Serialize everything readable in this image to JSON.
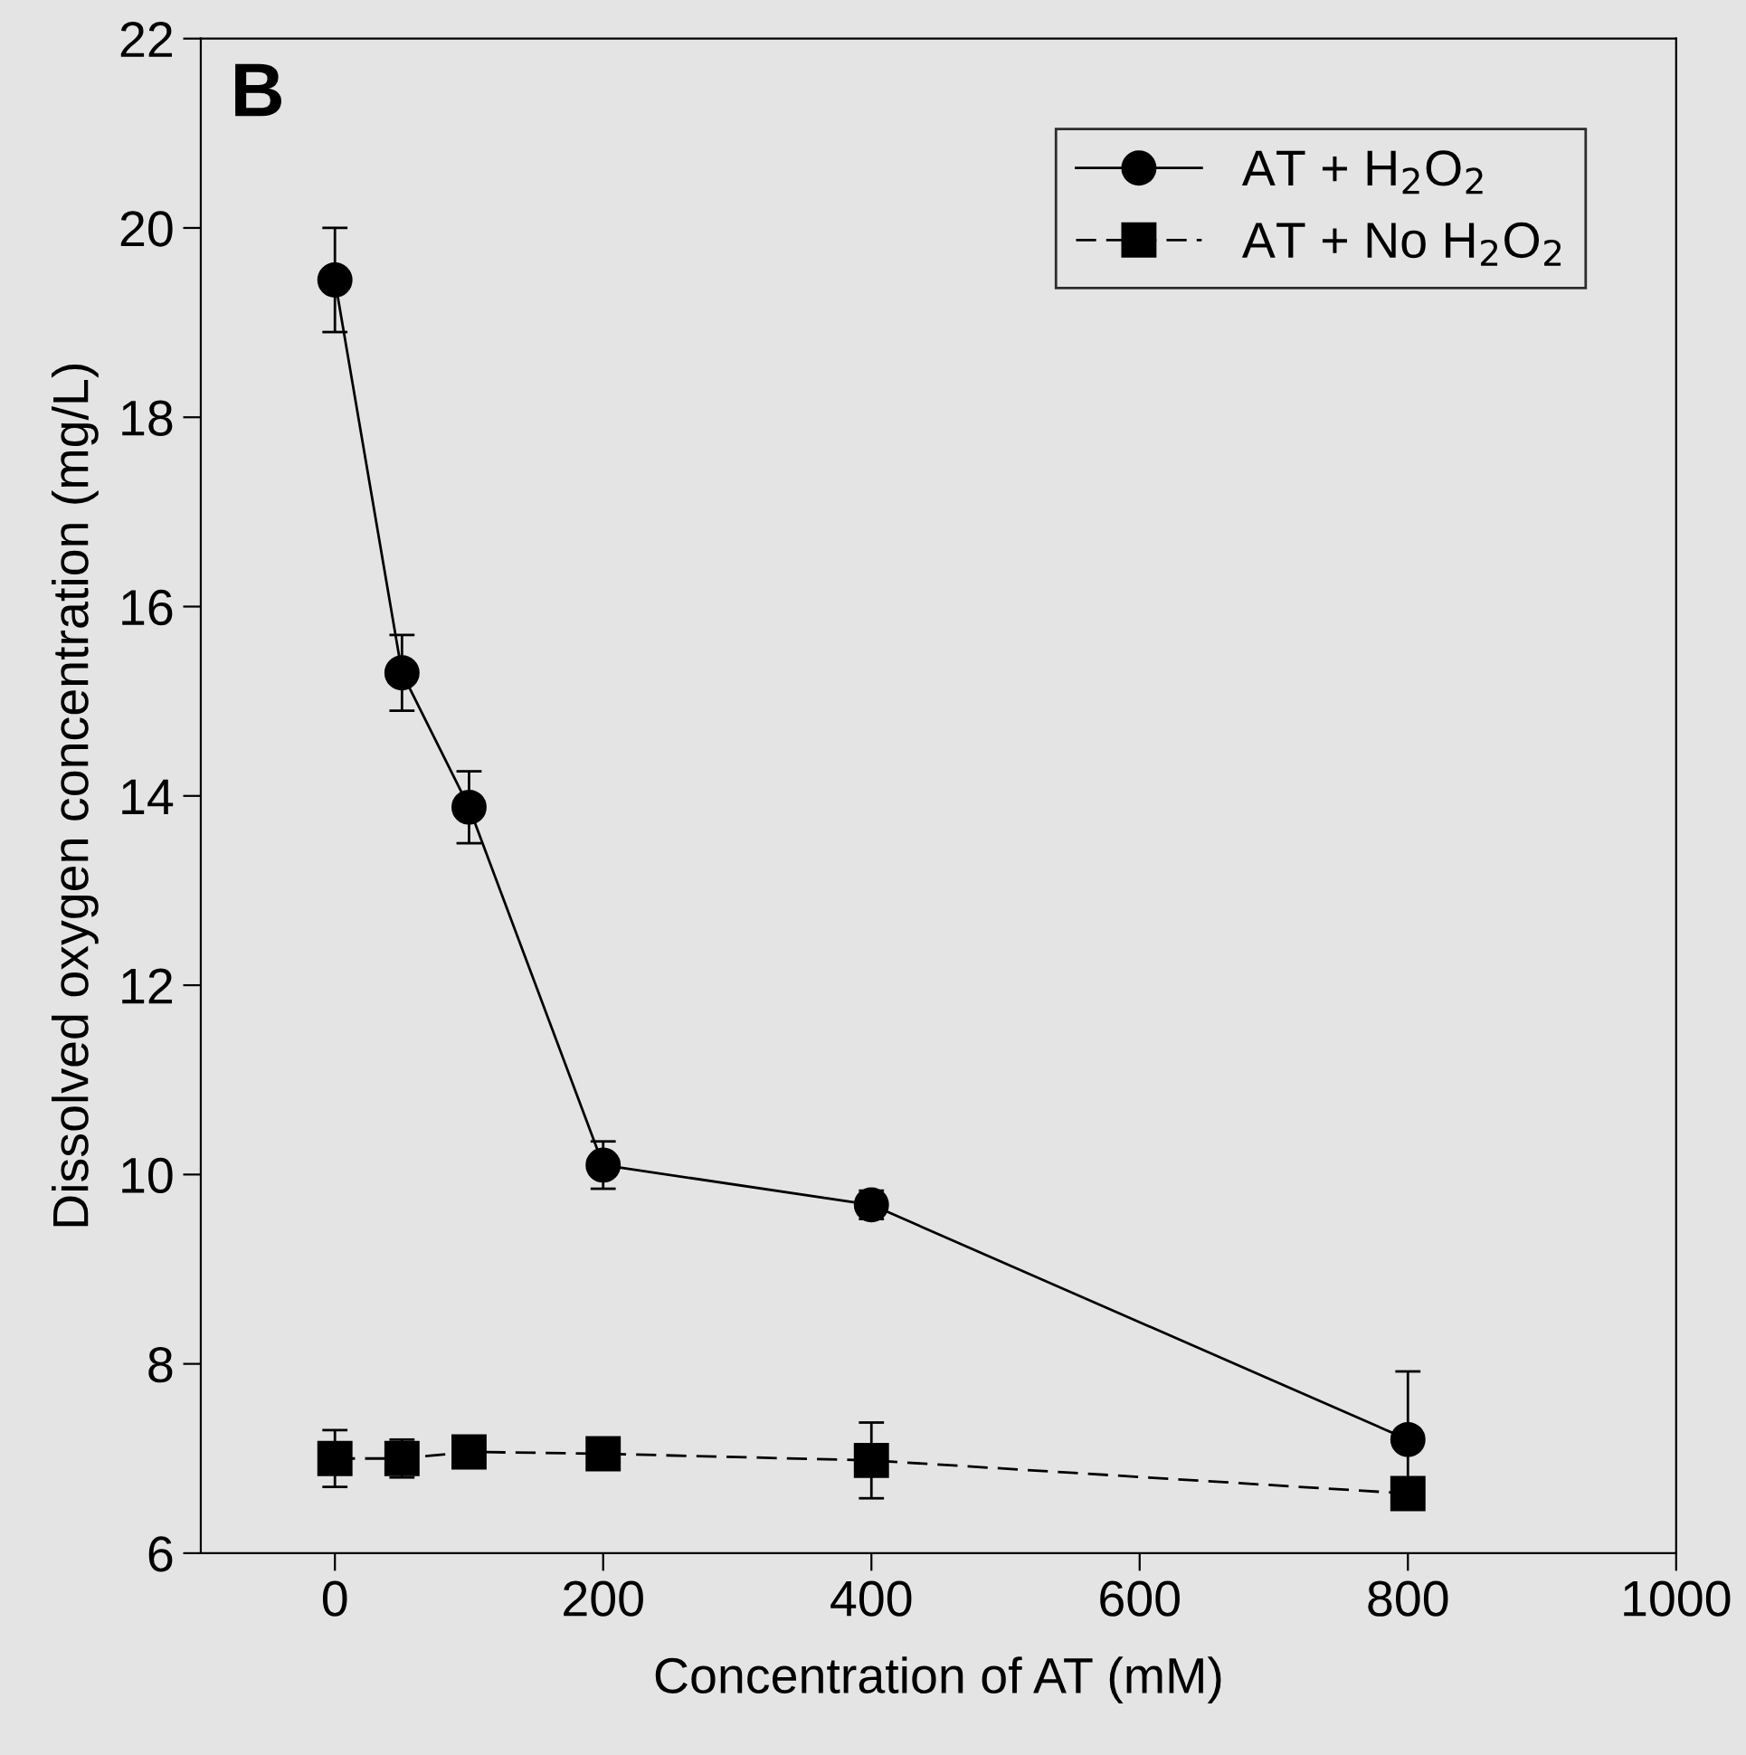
{
  "chart_data": {
    "type": "line",
    "xlabel": "Concentration of AT (mM)",
    "ylabel": "Dissolved oxygen concentration (mg/L)",
    "annotations": [
      "B"
    ],
    "x": [
      0,
      50,
      100,
      200,
      400,
      800
    ],
    "series": [
      {
        "name": "AT + H$_{2}$O$_{2}$",
        "color": "#000000",
        "marker": "circle",
        "line_style": "solid",
        "values": [
          19.45,
          15.3,
          13.88,
          10.1,
          9.68,
          7.2
        ],
        "errors": [
          0.55,
          0.4,
          0.38,
          0.25,
          0.15,
          0.72
        ]
      },
      {
        "name": "AT + No H$_{2}$O$_{2}$",
        "color": "#000000",
        "marker": "square",
        "line_style": "dashed",
        "values": [
          7.0,
          7.0,
          7.07,
          7.05,
          6.98,
          6.63
        ],
        "errors": [
          0.3,
          0.2,
          0.1,
          0.05,
          0.4,
          0.1
        ]
      }
    ],
    "xlim": [
      -100,
      1000
    ],
    "ylim": [
      6,
      22
    ],
    "xticks": [
      0,
      200,
      400,
      600,
      800,
      1000
    ],
    "yticks": [
      6,
      8,
      10,
      12,
      14,
      16,
      18,
      20,
      22
    ],
    "grid": false,
    "legend": "top right"
  }
}
